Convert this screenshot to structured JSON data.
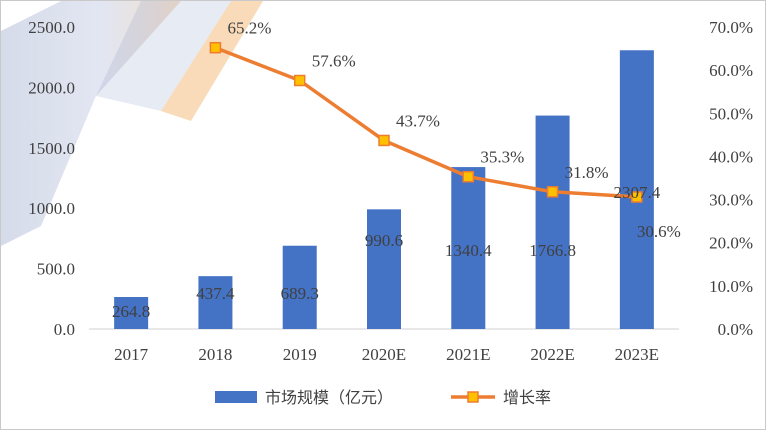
{
  "chart_data": {
    "type": "bar+line",
    "categories": [
      "2017",
      "2018",
      "2019",
      "2020E",
      "2021E",
      "2022E",
      "2023E"
    ],
    "series": [
      {
        "name": "市场规模（亿元）",
        "type": "bar",
        "axis": "left",
        "color": "#4472C4",
        "values": [
          264.8,
          437.4,
          689.3,
          990.6,
          1340.4,
          1766.8,
          2307.4
        ],
        "labels": [
          "264.8",
          "437.4",
          "689.3",
          "990.6",
          "1340.4",
          "1766.8",
          "2307.4"
        ]
      },
      {
        "name": "增长率",
        "type": "line",
        "axis": "right",
        "color": "#ED7D31",
        "marker_color": "#FFC000",
        "values": [
          null,
          65.2,
          57.6,
          43.7,
          35.3,
          31.8,
          30.6
        ],
        "labels": [
          "",
          "65.2%",
          "57.6%",
          "43.7%",
          "35.3%",
          "31.8%",
          "30.6%"
        ]
      }
    ],
    "y_left": {
      "range": [
        0,
        2500
      ],
      "ticks": [
        0,
        500,
        1000,
        1500,
        2000,
        2500
      ],
      "tick_labels": [
        "0.0",
        "500.0",
        "1000.0",
        "1500.0",
        "2000.0",
        "2500.0"
      ]
    },
    "y_right": {
      "range": [
        0,
        70
      ],
      "ticks": [
        0,
        10,
        20,
        30,
        40,
        50,
        60,
        70
      ],
      "tick_labels": [
        "0.0%",
        "10.0%",
        "20.0%",
        "30.0%",
        "40.0%",
        "50.0%",
        "60.0%",
        "70.0%"
      ]
    },
    "grid": false,
    "legend": "bottom-center"
  }
}
